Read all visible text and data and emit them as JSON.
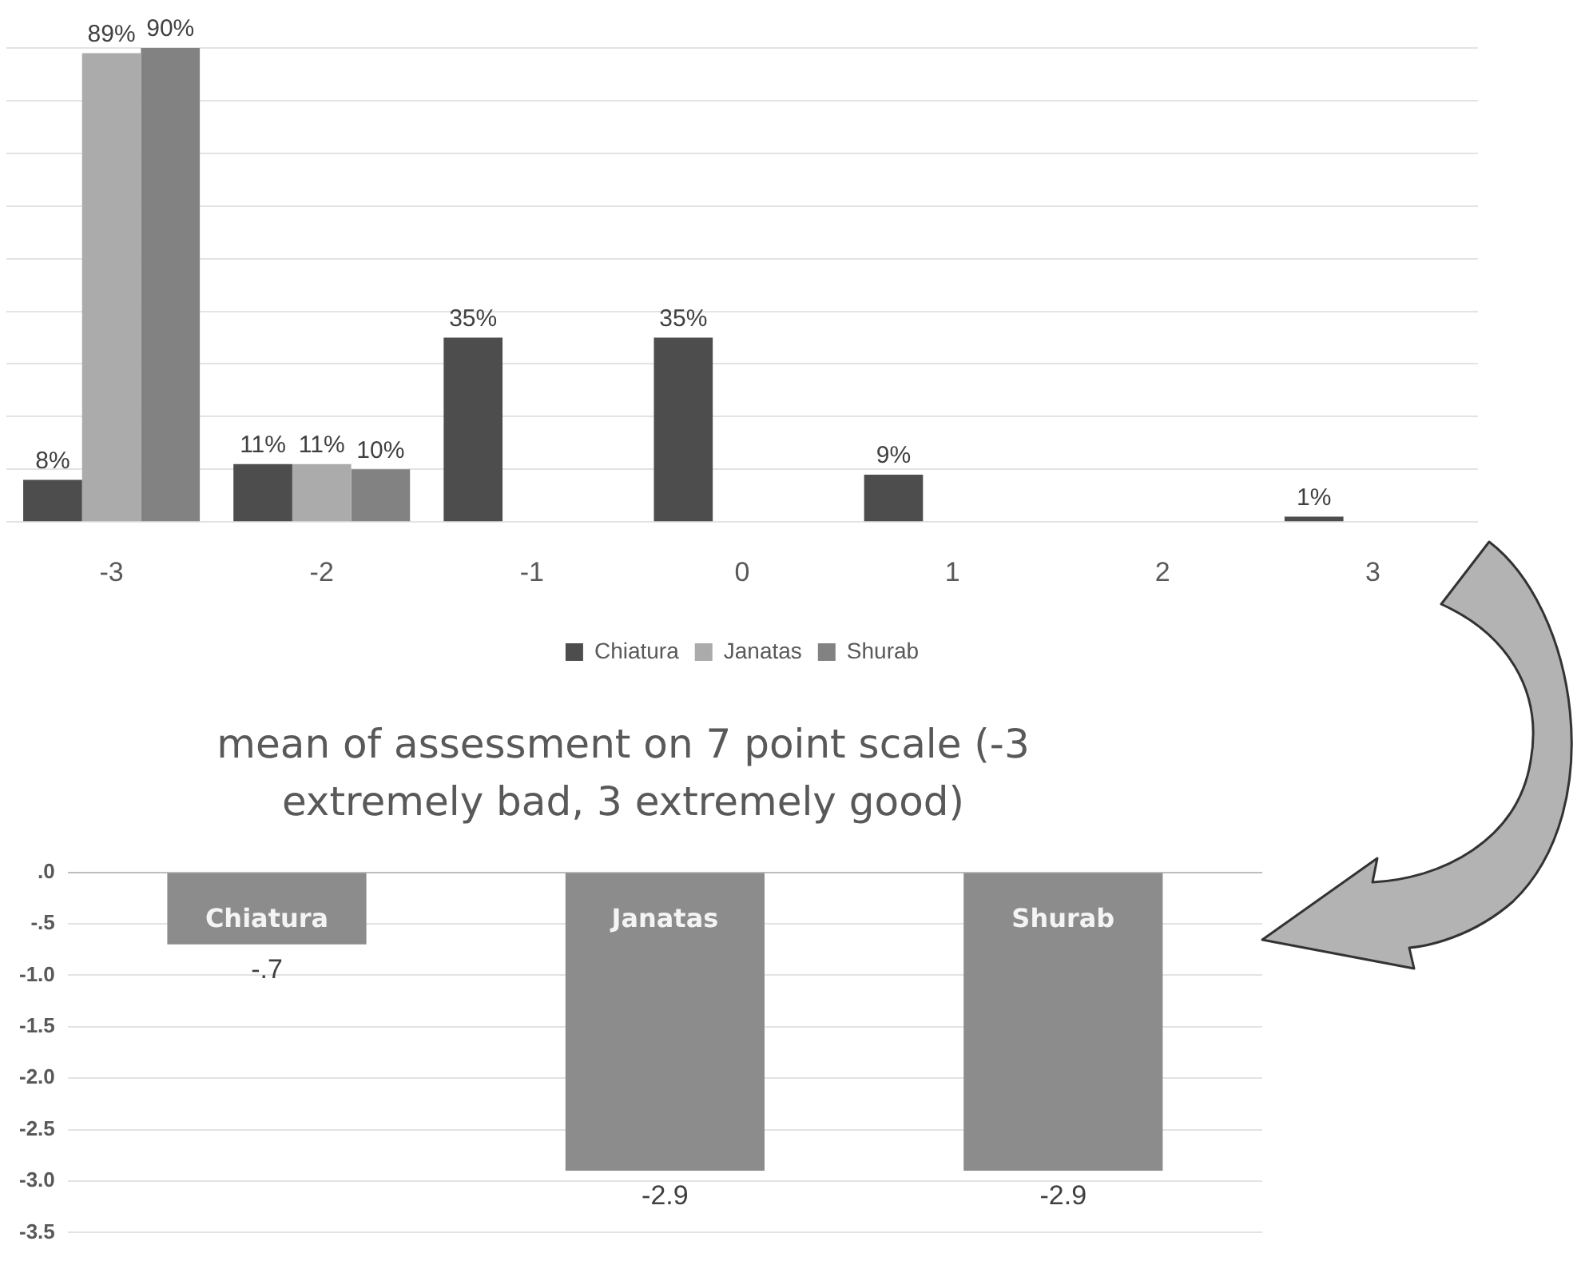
{
  "chart_data": [
    {
      "type": "bar",
      "categories": [
        "-3",
        "-2",
        "-1",
        "0",
        "1",
        "2",
        "3"
      ],
      "series": [
        {
          "name": "Chiatura",
          "color": "#4d4d4d",
          "values": [
            8,
            11,
            35,
            35,
            9,
            0,
            1
          ],
          "value_labels": [
            "8%",
            "11%",
            "35%",
            "35%",
            "9%",
            null,
            "1%"
          ]
        },
        {
          "name": "Janatas",
          "color": "#ababab",
          "values": [
            89,
            11,
            0,
            0,
            0,
            0,
            0
          ],
          "value_labels": [
            "89%",
            "11%",
            null,
            null,
            null,
            null,
            null
          ]
        },
        {
          "name": "Shurab",
          "color": "#828282",
          "values": [
            90,
            10,
            0,
            0,
            0,
            0,
            0
          ],
          "value_labels": [
            "90%",
            "10%",
            null,
            null,
            null,
            null,
            null
          ]
        }
      ],
      "tick_labels": "x",
      "grid": "y",
      "legend": "bottom"
    },
    {
      "type": "bar",
      "title": "mean of assessment  on 7 point scale (-3 extremely bad, 3 extremely good)",
      "categories": [
        "Chiatura",
        "Janatas",
        "Shurab"
      ],
      "values": [
        -0.7,
        -2.9,
        -2.9
      ],
      "color": "#8c8c8c",
      "value_labels": [
        "-.7",
        "-2.9",
        "-2.9"
      ],
      "ylim": [
        -3.5,
        0
      ],
      "yticks": [
        {
          "value": 0,
          "label": ".0"
        },
        {
          "value": -0.5,
          "label": "-.5"
        },
        {
          "value": -1,
          "label": "-1.0"
        },
        {
          "value": -1.5,
          "label": "-1.5"
        },
        {
          "value": -2,
          "label": "-2.0"
        },
        {
          "value": -2.5,
          "label": "-2.5"
        },
        {
          "value": -3,
          "label": "-3.0"
        },
        {
          "value": -3.5,
          "label": "-3.5"
        }
      ],
      "grid": "y"
    }
  ]
}
